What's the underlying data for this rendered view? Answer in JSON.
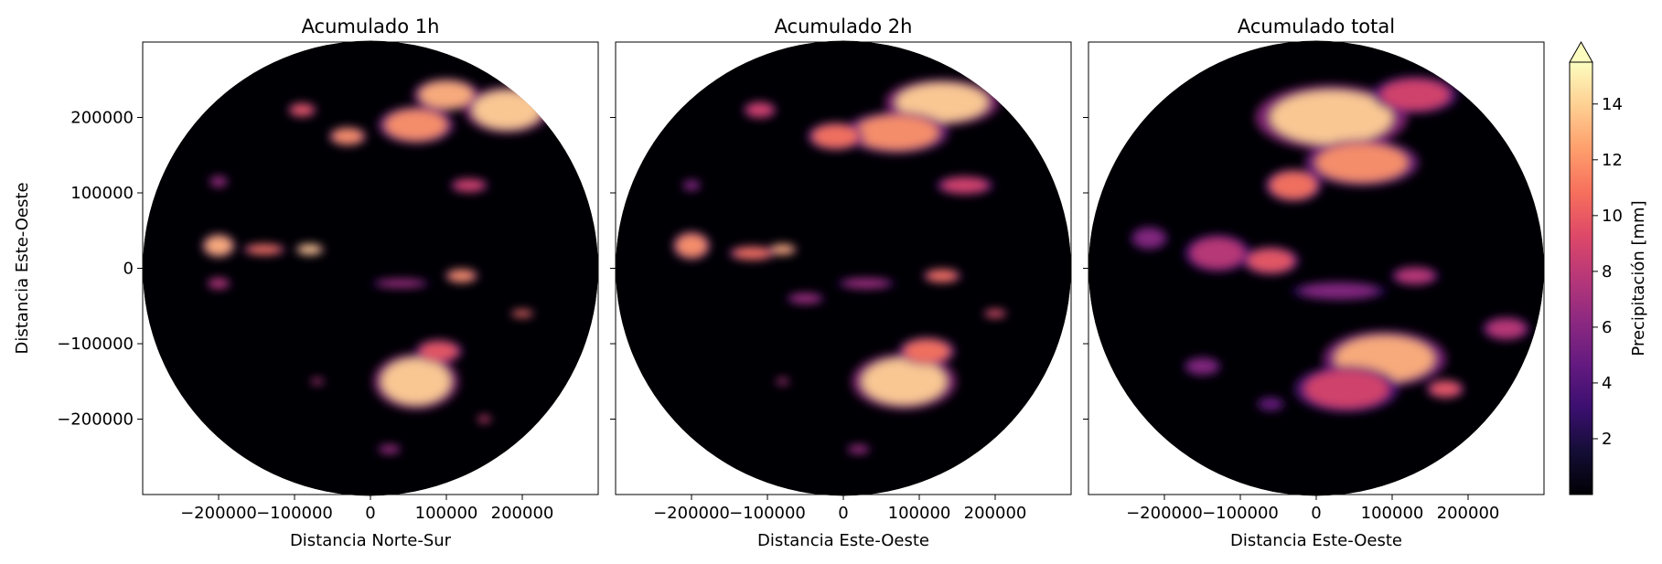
{
  "chart_data": [
    {
      "type": "heatmap",
      "title": "Acumulado 1h",
      "xlabel": "Distancia Norte-Sur",
      "ylabel": "Distancia Este-Oeste",
      "xlim": [
        -300000,
        300000
      ],
      "ylim": [
        -300000,
        300000
      ],
      "xticks": [
        -200000,
        -100000,
        0,
        100000,
        200000
      ],
      "xticklabels": [
        "−200000",
        "−100000",
        "0",
        "100000",
        "200000"
      ],
      "yticks": [
        -200000,
        -100000,
        0,
        100000,
        200000
      ],
      "yticklabels": [
        "−200000",
        "−100000",
        "0",
        "100000",
        "200000"
      ],
      "domain_radius": 300000,
      "cells": [
        [
          180000,
          210000,
          90000,
          50000,
          14
        ],
        [
          100000,
          230000,
          70000,
          35000,
          13
        ],
        [
          60000,
          190000,
          80000,
          40000,
          12
        ],
        [
          -30000,
          175000,
          40000,
          20000,
          12
        ],
        [
          -90000,
          210000,
          30000,
          15000,
          10
        ],
        [
          130000,
          110000,
          40000,
          15000,
          9
        ],
        [
          -200000,
          30000,
          35000,
          25000,
          13
        ],
        [
          -140000,
          25000,
          45000,
          12000,
          11
        ],
        [
          -80000,
          25000,
          30000,
          12000,
          14
        ],
        [
          -200000,
          -20000,
          25000,
          12000,
          8
        ],
        [
          120000,
          -10000,
          35000,
          15000,
          12
        ],
        [
          40000,
          -20000,
          60000,
          10000,
          7
        ],
        [
          200000,
          -60000,
          25000,
          8000,
          11
        ],
        [
          60000,
          -150000,
          90000,
          60000,
          14
        ],
        [
          90000,
          -110000,
          50000,
          25000,
          10
        ],
        [
          -70000,
          -150000,
          15000,
          7000,
          8
        ],
        [
          -200000,
          115000,
          20000,
          12000,
          7
        ],
        [
          150000,
          -200000,
          15000,
          8000,
          9
        ],
        [
          25000,
          -240000,
          25000,
          10000,
          7
        ]
      ]
    },
    {
      "type": "heatmap",
      "title": "Acumulado 2h",
      "xlabel": "Distancia Este-Oeste",
      "ylabel": "",
      "xlim": [
        -300000,
        300000
      ],
      "ylim": [
        -300000,
        300000
      ],
      "xticks": [
        -200000,
        -100000,
        0,
        100000,
        200000
      ],
      "xticklabels": [
        "−200000",
        "−100000",
        "0",
        "100000",
        "200000"
      ],
      "yticks": [
        -200000,
        -100000,
        0,
        100000,
        200000
      ],
      "yticklabels": [],
      "domain_radius": 300000,
      "cells": [
        [
          130000,
          220000,
          120000,
          50000,
          14
        ],
        [
          70000,
          180000,
          110000,
          45000,
          12
        ],
        [
          -10000,
          175000,
          60000,
          30000,
          11
        ],
        [
          160000,
          110000,
          60000,
          20000,
          9
        ],
        [
          -110000,
          210000,
          35000,
          18000,
          9
        ],
        [
          -200000,
          30000,
          40000,
          30000,
          12
        ],
        [
          -120000,
          20000,
          50000,
          15000,
          11
        ],
        [
          -80000,
          25000,
          30000,
          12000,
          13
        ],
        [
          130000,
          -10000,
          40000,
          15000,
          11
        ],
        [
          30000,
          -20000,
          60000,
          12000,
          7
        ],
        [
          -50000,
          -40000,
          40000,
          12000,
          7
        ],
        [
          200000,
          -60000,
          25000,
          9000,
          10
        ],
        [
          80000,
          -150000,
          110000,
          60000,
          14
        ],
        [
          110000,
          -110000,
          60000,
          30000,
          11
        ],
        [
          -80000,
          -150000,
          15000,
          7000,
          8
        ],
        [
          20000,
          -240000,
          25000,
          10000,
          7
        ],
        [
          -200000,
          110000,
          20000,
          12000,
          6
        ]
      ]
    },
    {
      "type": "heatmap",
      "title": "Acumulado total",
      "xlabel": "Distancia Este-Oeste",
      "ylabel": "",
      "xlim": [
        -300000,
        300000
      ],
      "ylim": [
        -300000,
        300000
      ],
      "xticks": [
        -200000,
        -100000,
        0,
        100000,
        200000
      ],
      "xticklabels": [
        "−200000",
        "−100000",
        "0",
        "100000",
        "200000"
      ],
      "yticks": [
        -200000,
        -100000,
        0,
        100000,
        200000
      ],
      "yticklabels": [],
      "domain_radius": 300000,
      "cells": [
        [
          20000,
          200000,
          160000,
          70000,
          14
        ],
        [
          60000,
          140000,
          120000,
          50000,
          12
        ],
        [
          -30000,
          110000,
          60000,
          35000,
          11
        ],
        [
          130000,
          230000,
          90000,
          40000,
          9
        ],
        [
          -130000,
          20000,
          70000,
          40000,
          8
        ],
        [
          -60000,
          10000,
          60000,
          30000,
          10
        ],
        [
          130000,
          -10000,
          50000,
          20000,
          8
        ],
        [
          30000,
          -30000,
          100000,
          20000,
          6
        ],
        [
          90000,
          -120000,
          130000,
          60000,
          13
        ],
        [
          40000,
          -160000,
          110000,
          50000,
          9
        ],
        [
          250000,
          -80000,
          50000,
          25000,
          8
        ],
        [
          -150000,
          -130000,
          40000,
          20000,
          6
        ],
        [
          -60000,
          -180000,
          30000,
          15000,
          5
        ],
        [
          170000,
          -160000,
          40000,
          20000,
          10
        ],
        [
          -220000,
          40000,
          40000,
          25000,
          6
        ]
      ]
    }
  ],
  "colorbar": {
    "label": "Precipitación [mm]",
    "vmin": 0,
    "vmax": 15.5,
    "ticks": [
      2,
      4,
      6,
      8,
      10,
      12,
      14
    ],
    "ticklabels": [
      "2",
      "4",
      "6",
      "8",
      "10",
      "12",
      "14"
    ],
    "extend": "max",
    "colormap": "magma",
    "stops": [
      "#000004",
      "#140e36",
      "#3b0f70",
      "#641a80",
      "#8c2981",
      "#b73779",
      "#de4968",
      "#f7705c",
      "#fe9f6d",
      "#fecf92",
      "#fcfdbf"
    ]
  }
}
